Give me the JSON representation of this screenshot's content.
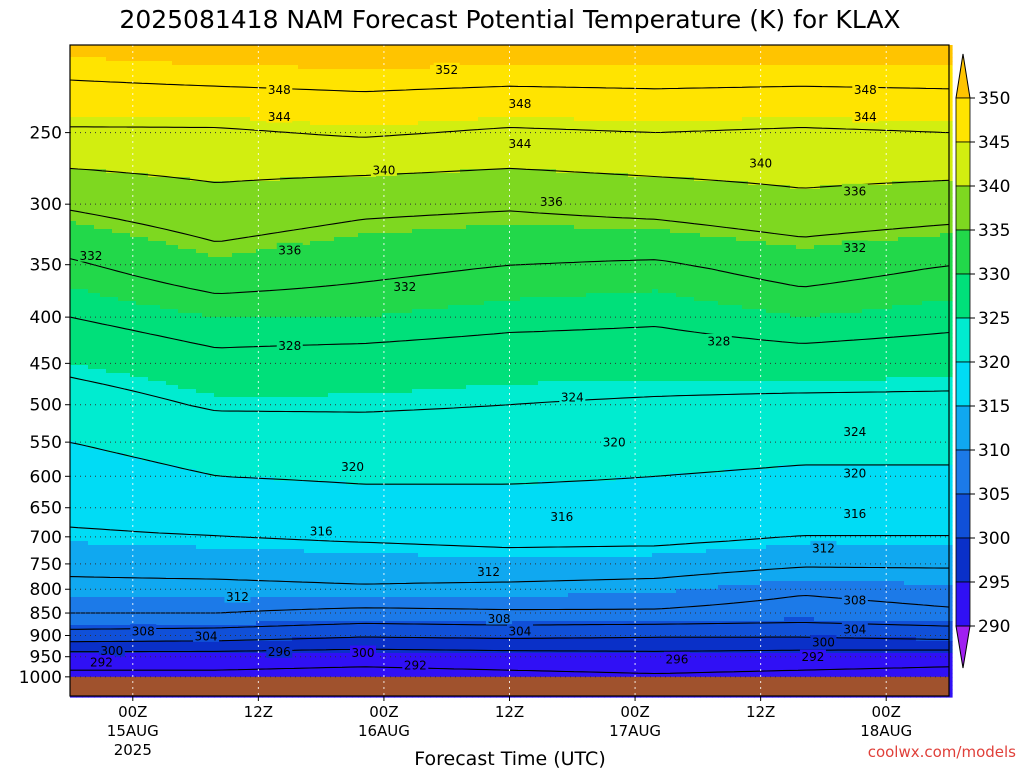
{
  "chart_data": {
    "type": "heatmap",
    "title": "2025081418 NAM Forecast Potential Temperature (K) for KLAX",
    "xlabel": "Forecast Time (UTC)",
    "ylabel": "",
    "y_ticks": [
      "250",
      "300",
      "350",
      "400",
      "450",
      "500",
      "550",
      "600",
      "650",
      "700",
      "750",
      "800",
      "850",
      "900",
      "950",
      "1000"
    ],
    "x_ticks": [
      {
        "hours": 6,
        "label": "00Z",
        "date": "15AUG",
        "year": "2025"
      },
      {
        "hours": 18,
        "label": "12Z",
        "date": "",
        "year": ""
      },
      {
        "hours": 30,
        "label": "00Z",
        "date": "16AUG",
        "year": ""
      },
      {
        "hours": 42,
        "label": "12Z",
        "date": "",
        "year": ""
      },
      {
        "hours": 54,
        "label": "00Z",
        "date": "17AUG",
        "year": ""
      },
      {
        "hours": 66,
        "label": "12Z",
        "date": "",
        "year": ""
      },
      {
        "hours": 78,
        "label": "00Z",
        "date": "18AUG",
        "year": ""
      }
    ],
    "x_range_hours": [
      0,
      84
    ],
    "y_range_hPa": [
      1050,
      200
    ],
    "y_scale": "log-pressure",
    "grid": true,
    "colorbar": {
      "ticks": [
        "290",
        "295",
        "300",
        "305",
        "310",
        "315",
        "320",
        "325",
        "330",
        "335",
        "340",
        "345",
        "350"
      ],
      "colors": [
        "#a020f0",
        "#3010f5",
        "#0a30c8",
        "#1050d8",
        "#1c7ae8",
        "#10a8f0",
        "#00dcf5",
        "#00ecd0",
        "#00e07a",
        "#22d84a",
        "#7ed820",
        "#d2ee10",
        "#ffe400",
        "#ffc400"
      ]
    },
    "surface_color": "#a0522d",
    "contour_levels_K": [
      292,
      296,
      300,
      304,
      308,
      312,
      316,
      320,
      324,
      328,
      332,
      336,
      340,
      344,
      348,
      352
    ],
    "profile_hours": [
      0,
      14,
      28,
      42,
      56,
      70,
      84
    ],
    "theta_profile_K": [
      {
        "pressure": 1000,
        "values": [
          291,
          291,
          290.5,
          291,
          291.5,
          291,
          290.5
        ]
      },
      {
        "pressure": 950,
        "values": [
          294,
          294,
          293.5,
          294,
          294.5,
          294,
          293.5
        ]
      },
      {
        "pressure": 900,
        "values": [
          302.5,
          302,
          300.5,
          301,
          300.5,
          300.5,
          301.5
        ]
      },
      {
        "pressure": 850,
        "values": [
          308,
          308,
          307,
          307.5,
          307.5,
          306.5,
          307.5
        ]
      },
      {
        "pressure": 800,
        "values": [
          311,
          311,
          311.5,
          311,
          310.5,
          308.5,
          309.5
        ]
      },
      {
        "pressure": 750,
        "values": [
          313,
          313.5,
          314,
          314.5,
          314,
          312.5,
          312.5
        ]
      },
      {
        "pressure": 700,
        "values": [
          315.5,
          316,
          316.5,
          317,
          317,
          316,
          316
        ]
      },
      {
        "pressure": 650,
        "values": [
          317,
          317.5,
          318.5,
          318.5,
          318.5,
          318,
          318
        ]
      },
      {
        "pressure": 600,
        "values": [
          318.5,
          320,
          320.5,
          320.5,
          320,
          319.5,
          319.5
        ]
      },
      {
        "pressure": 550,
        "values": [
          320,
          321.5,
          322,
          322,
          321.5,
          321,
          321
        ]
      },
      {
        "pressure": 500,
        "values": [
          322,
          324.5,
          324.5,
          324,
          323.5,
          323,
          323
        ]
      },
      {
        "pressure": 450,
        "values": [
          325,
          327,
          326.5,
          326,
          326,
          326.5,
          326
        ]
      },
      {
        "pressure": 400,
        "values": [
          328,
          330,
          330,
          329,
          328.5,
          330,
          329
        ]
      },
      {
        "pressure": 350,
        "values": [
          331.5,
          334.5,
          333,
          332,
          331.5,
          333.5,
          332
        ]
      },
      {
        "pressure": 300,
        "values": [
          336.5,
          338.5,
          337,
          336.5,
          337.5,
          339,
          338
        ]
      },
      {
        "pressure": 250,
        "values": [
          343.5,
          343.5,
          344.5,
          343.5,
          344,
          343.5,
          344
        ]
      },
      {
        "pressure": 200,
        "values": [
          351,
          352,
          352,
          352,
          352,
          352,
          352
        ]
      }
    ],
    "contour_labels": [
      {
        "text": "352",
        "hours": 36,
        "pressure": 213
      },
      {
        "text": "348",
        "hours": 20,
        "pressure": 224
      },
      {
        "text": "348",
        "hours": 43,
        "pressure": 232
      },
      {
        "text": "348",
        "hours": 76,
        "pressure": 224
      },
      {
        "text": "344",
        "hours": 20,
        "pressure": 240
      },
      {
        "text": "344",
        "hours": 43,
        "pressure": 257
      },
      {
        "text": "344",
        "hours": 76,
        "pressure": 240
      },
      {
        "text": "340",
        "hours": 30,
        "pressure": 275
      },
      {
        "text": "340",
        "hours": 66,
        "pressure": 270
      },
      {
        "text": "336",
        "hours": 46,
        "pressure": 298
      },
      {
        "text": "336",
        "hours": 75,
        "pressure": 290
      },
      {
        "text": "336",
        "hours": 21,
        "pressure": 337
      },
      {
        "text": "332",
        "hours": 2,
        "pressure": 342
      },
      {
        "text": "332",
        "hours": 32,
        "pressure": 370
      },
      {
        "text": "332",
        "hours": 75,
        "pressure": 335
      },
      {
        "text": "328",
        "hours": 21,
        "pressure": 430
      },
      {
        "text": "328",
        "hours": 62,
        "pressure": 425
      },
      {
        "text": "324",
        "hours": 48,
        "pressure": 490
      },
      {
        "text": "324",
        "hours": 75,
        "pressure": 535
      },
      {
        "text": "320",
        "hours": 27,
        "pressure": 585
      },
      {
        "text": "320",
        "hours": 52,
        "pressure": 550
      },
      {
        "text": "320",
        "hours": 75,
        "pressure": 595
      },
      {
        "text": "316",
        "hours": 24,
        "pressure": 690
      },
      {
        "text": "316",
        "hours": 47,
        "pressure": 665
      },
      {
        "text": "316",
        "hours": 75,
        "pressure": 660
      },
      {
        "text": "312",
        "hours": 16,
        "pressure": 815
      },
      {
        "text": "312",
        "hours": 40,
        "pressure": 765
      },
      {
        "text": "312",
        "hours": 72,
        "pressure": 720
      },
      {
        "text": "308",
        "hours": 7,
        "pressure": 890
      },
      {
        "text": "308",
        "hours": 41,
        "pressure": 862
      },
      {
        "text": "308",
        "hours": 75,
        "pressure": 822
      },
      {
        "text": "304",
        "hours": 13,
        "pressure": 901
      },
      {
        "text": "304",
        "hours": 43,
        "pressure": 890
      },
      {
        "text": "304",
        "hours": 75,
        "pressure": 885
      },
      {
        "text": "300",
        "hours": 4,
        "pressure": 935
      },
      {
        "text": "300",
        "hours": 28,
        "pressure": 940
      },
      {
        "text": "300",
        "hours": 72,
        "pressure": 915
      },
      {
        "text": "296",
        "hours": 20,
        "pressure": 938
      },
      {
        "text": "296",
        "hours": 58,
        "pressure": 955
      },
      {
        "text": "292",
        "hours": 3,
        "pressure": 963
      },
      {
        "text": "292",
        "hours": 33,
        "pressure": 970
      },
      {
        "text": "292",
        "hours": 71,
        "pressure": 950
      }
    ]
  },
  "watermark": "coolwx.com/models"
}
